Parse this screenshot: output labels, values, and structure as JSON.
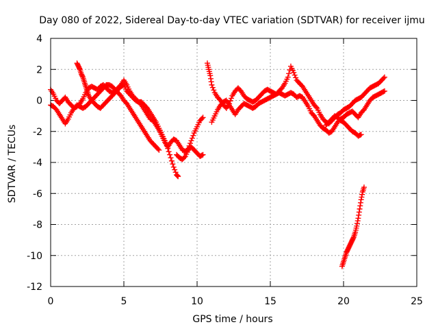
{
  "chart_data": {
    "type": "scatter",
    "title": "Day 080 of 2022, Sidereal Day-to-day VTEC variation (SDTVAR) for receiver ijmu",
    "xlabel": "GPS time / hours",
    "ylabel": "SDTVAR / TECUs",
    "xlim": [
      0,
      25
    ],
    "ylim": [
      -12,
      4
    ],
    "xticks": [
      0,
      5,
      10,
      15,
      20,
      25
    ],
    "yticks": [
      4,
      2,
      0,
      -2,
      -4,
      -6,
      -8,
      -10,
      -12
    ],
    "grid": true,
    "legend": "none",
    "marker": "plus",
    "color": "#ff0000",
    "series": [
      {
        "points": [
          [
            0,
            0.7
          ],
          [
            0.2,
            0.4
          ],
          [
            0.4,
            0
          ],
          [
            0.6,
            -0.2
          ],
          [
            0.8,
            0
          ],
          [
            1,
            0.2
          ],
          [
            1.2,
            -0.1
          ],
          [
            1.4,
            -0.3
          ],
          [
            1.6,
            -0.5
          ],
          [
            1.8,
            -0.4
          ],
          [
            2,
            -0.2
          ],
          [
            2.2,
            0.1
          ],
          [
            2.4,
            0.5
          ],
          [
            2.6,
            0.8
          ],
          [
            2.8,
            0.9
          ],
          [
            3,
            0.8
          ],
          [
            3.2,
            0.7
          ],
          [
            3.4,
            0.9
          ],
          [
            3.6,
            1
          ],
          [
            3.8,
            0.8
          ],
          [
            4,
            0.6
          ],
          [
            4.2,
            0.5
          ],
          [
            4.4,
            0.6
          ],
          [
            4.6,
            0.8
          ],
          [
            4.8,
            1
          ],
          [
            5,
            1.3
          ],
          [
            5.2,
            1
          ],
          [
            5.4,
            0.6
          ],
          [
            5.6,
            0.3
          ],
          [
            5.8,
            0.1
          ],
          [
            6,
            -0.1
          ],
          [
            6.2,
            -0.3
          ],
          [
            6.4,
            -0.6
          ],
          [
            6.6,
            -0.9
          ],
          [
            6.8,
            -1.2
          ],
          [
            7,
            -1.3
          ],
          [
            7.2,
            -1.6
          ],
          [
            7.4,
            -1.9
          ],
          [
            7.6,
            -2.3
          ],
          [
            7.8,
            -2.7
          ],
          [
            8,
            -3
          ],
          [
            8.2,
            -2.7
          ],
          [
            8.4,
            -2.5
          ],
          [
            8.6,
            -2.6
          ],
          [
            8.8,
            -2.9
          ],
          [
            9,
            -3.2
          ],
          [
            9.2,
            -3.3
          ],
          [
            9.4,
            -3.1
          ],
          [
            9.6,
            -2.6
          ],
          [
            9.8,
            -2.1
          ],
          [
            10,
            -1.7
          ],
          [
            10.2,
            -1.3
          ],
          [
            10.4,
            -1.1
          ]
        ]
      },
      {
        "points": [
          [
            0,
            -0.3
          ],
          [
            0.2,
            -0.4
          ],
          [
            0.4,
            -0.6
          ],
          [
            0.6,
            -0.9
          ],
          [
            0.8,
            -1.2
          ],
          [
            1,
            -1.5
          ],
          [
            1.2,
            -1.2
          ],
          [
            1.4,
            -0.8
          ],
          [
            1.6,
            -0.5
          ],
          [
            1.8,
            -0.3
          ],
          [
            2,
            -0.4
          ],
          [
            2.2,
            -0.5
          ],
          [
            2.4,
            -0.4
          ],
          [
            2.6,
            -0.2
          ],
          [
            2.8,
            0
          ],
          [
            3,
            0.2
          ],
          [
            3.2,
            0.4
          ],
          [
            3.4,
            0.6
          ],
          [
            3.6,
            0.8
          ],
          [
            3.8,
            1
          ],
          [
            4,
            1
          ],
          [
            4.2,
            0.9
          ],
          [
            4.4,
            0.7
          ],
          [
            4.6,
            0.5
          ],
          [
            4.8,
            0.3
          ],
          [
            5,
            0
          ],
          [
            5.2,
            -0.2
          ],
          [
            5.4,
            -0.5
          ],
          [
            5.6,
            -0.8
          ],
          [
            5.8,
            -1.1
          ],
          [
            6,
            -1.4
          ],
          [
            6.2,
            -1.7
          ],
          [
            6.4,
            -2
          ],
          [
            6.6,
            -2.3
          ],
          [
            6.8,
            -2.6
          ],
          [
            7,
            -2.8
          ],
          [
            7.2,
            -3
          ],
          [
            7.4,
            -3.2
          ]
        ]
      },
      {
        "points": [
          [
            1.8,
            2.4
          ],
          [
            1.9,
            2.2
          ],
          [
            2,
            2
          ],
          [
            2.1,
            1.7
          ],
          [
            2.2,
            1.5
          ],
          [
            2.3,
            1.2
          ],
          [
            2.4,
            0.9
          ],
          [
            2.5,
            0.6
          ],
          [
            2.6,
            0.3
          ],
          [
            2.8,
            0
          ],
          [
            3,
            -0.2
          ],
          [
            3.2,
            -0.4
          ],
          [
            3.4,
            -0.5
          ],
          [
            3.6,
            -0.3
          ],
          [
            3.8,
            -0.1
          ],
          [
            4,
            0.1
          ],
          [
            4.2,
            0.3
          ],
          [
            4.4,
            0.5
          ],
          [
            4.6,
            0.7
          ],
          [
            4.8,
            0.9
          ],
          [
            5,
            1
          ],
          [
            5.2,
            0.6
          ],
          [
            5.4,
            0.4
          ],
          [
            5.6,
            0.2
          ],
          [
            5.8,
            0
          ],
          [
            6,
            -0.1
          ],
          [
            6.2,
            -0.1
          ],
          [
            6.4,
            -0.3
          ],
          [
            6.6,
            -0.5
          ],
          [
            6.8,
            -0.8
          ],
          [
            7,
            -1.1
          ],
          [
            7.2,
            -1.4
          ],
          [
            7.4,
            -1.8
          ],
          [
            7.6,
            -2.2
          ],
          [
            7.8,
            -2.6
          ],
          [
            8,
            -3.1
          ],
          [
            8.2,
            -3.7
          ],
          [
            8.4,
            -4.3
          ],
          [
            8.6,
            -4.8
          ],
          [
            8.7,
            -4.9
          ]
        ]
      },
      {
        "points": [
          [
            8.6,
            -3.5
          ],
          [
            8.8,
            -3.7
          ],
          [
            9,
            -3.8
          ],
          [
            9.2,
            -3.6
          ],
          [
            9.4,
            -3.2
          ],
          [
            9.6,
            -3
          ],
          [
            9.8,
            -3.2
          ],
          [
            10,
            -3.4
          ],
          [
            10.2,
            -3.6
          ],
          [
            10.4,
            -3.5
          ]
        ]
      },
      {
        "points": [
          [
            10.7,
            2.4
          ],
          [
            10.8,
            2
          ],
          [
            10.9,
            1.6
          ],
          [
            11,
            1
          ],
          [
            11.2,
            0.5
          ],
          [
            11.4,
            0.2
          ],
          [
            11.6,
            0
          ],
          [
            11.8,
            -0.3
          ],
          [
            12,
            -0.5
          ],
          [
            12.2,
            -0.2
          ],
          [
            12.4,
            0.3
          ],
          [
            12.6,
            0.6
          ],
          [
            12.8,
            0.8
          ],
          [
            13,
            0.6
          ],
          [
            13.2,
            0.3
          ],
          [
            13.4,
            0.1
          ],
          [
            13.6,
            0
          ],
          [
            13.8,
            -0.1
          ],
          [
            14,
            0
          ],
          [
            14.2,
            0.2
          ],
          [
            14.4,
            0.4
          ],
          [
            14.6,
            0.6
          ],
          [
            14.8,
            0.7
          ],
          [
            15,
            0.6
          ],
          [
            15.2,
            0.5
          ],
          [
            15.4,
            0.4
          ],
          [
            15.6,
            0.6
          ],
          [
            15.8,
            0.8
          ],
          [
            16,
            1.1
          ],
          [
            16.2,
            1.5
          ],
          [
            16.4,
            2.2
          ],
          [
            16.6,
            1.8
          ],
          [
            16.8,
            1.3
          ],
          [
            17,
            1.1
          ],
          [
            17.2,
            0.9
          ],
          [
            17.4,
            0.6
          ],
          [
            17.6,
            0.3
          ],
          [
            17.8,
            0
          ],
          [
            18,
            -0.3
          ],
          [
            18.2,
            -0.5
          ],
          [
            18.4,
            -0.9
          ],
          [
            18.6,
            -1.2
          ],
          [
            18.8,
            -1.4
          ],
          [
            19,
            -1.5
          ],
          [
            19.2,
            -1.3
          ],
          [
            19.4,
            -1.1
          ],
          [
            19.6,
            -0.9
          ],
          [
            19.8,
            -0.8
          ],
          [
            20,
            -0.6
          ],
          [
            20.2,
            -0.5
          ],
          [
            20.4,
            -0.4
          ],
          [
            20.6,
            -0.2
          ],
          [
            20.8,
            0
          ],
          [
            21,
            0.1
          ],
          [
            21.2,
            0.2
          ],
          [
            21.4,
            0.4
          ],
          [
            21.6,
            0.6
          ],
          [
            21.8,
            0.8
          ],
          [
            22,
            0.9
          ],
          [
            22.2,
            1
          ],
          [
            22.4,
            1.1
          ],
          [
            22.6,
            1.3
          ],
          [
            22.8,
            1.5
          ]
        ]
      },
      {
        "points": [
          [
            11,
            -1.4
          ],
          [
            11.2,
            -1
          ],
          [
            11.4,
            -0.6
          ],
          [
            11.6,
            -0.3
          ],
          [
            11.8,
            -0.1
          ],
          [
            12,
            0
          ],
          [
            12.2,
            -0.3
          ],
          [
            12.4,
            -0.6
          ],
          [
            12.6,
            -0.9
          ],
          [
            12.8,
            -0.6
          ],
          [
            13,
            -0.4
          ],
          [
            13.2,
            -0.2
          ],
          [
            13.4,
            -0.3
          ],
          [
            13.6,
            -0.4
          ],
          [
            13.8,
            -0.5
          ],
          [
            14,
            -0.4
          ],
          [
            14.2,
            -0.2
          ],
          [
            14.4,
            -0.1
          ],
          [
            14.6,
            0
          ],
          [
            14.8,
            0.1
          ],
          [
            15,
            0.2
          ],
          [
            15.2,
            0.3
          ],
          [
            15.4,
            0.4
          ],
          [
            15.6,
            0.5
          ],
          [
            15.8,
            0.4
          ],
          [
            16,
            0.3
          ],
          [
            16.2,
            0.4
          ],
          [
            16.4,
            0.5
          ],
          [
            16.6,
            0.4
          ],
          [
            16.8,
            0.2
          ],
          [
            17,
            0.3
          ],
          [
            17.2,
            0.2
          ],
          [
            17.4,
            -0.1
          ],
          [
            17.6,
            -0.4
          ],
          [
            17.8,
            -0.8
          ],
          [
            18,
            -1
          ],
          [
            18.2,
            -1.3
          ],
          [
            18.4,
            -1.6
          ],
          [
            18.6,
            -1.8
          ],
          [
            18.8,
            -1.9
          ],
          [
            19,
            -2.1
          ],
          [
            19.2,
            -2
          ],
          [
            19.4,
            -1.7
          ],
          [
            19.6,
            -1.4
          ],
          [
            19.8,
            -1.2
          ],
          [
            20,
            -1.1
          ],
          [
            20.2,
            -0.9
          ],
          [
            20.4,
            -0.8
          ],
          [
            20.6,
            -0.7
          ],
          [
            20.8,
            -0.9
          ],
          [
            21,
            -1.1
          ],
          [
            21.2,
            -0.8
          ],
          [
            21.4,
            -0.6
          ],
          [
            21.6,
            -0.3
          ],
          [
            21.8,
            0
          ],
          [
            22,
            0.2
          ],
          [
            22.2,
            0.3
          ],
          [
            22.4,
            0.4
          ],
          [
            22.6,
            0.5
          ],
          [
            22.8,
            0.6
          ]
        ]
      },
      {
        "points": [
          [
            18.8,
            -1.6
          ],
          [
            19,
            -1.4
          ],
          [
            19.2,
            -1.2
          ],
          [
            19.4,
            -1
          ],
          [
            19.6,
            -1.1
          ],
          [
            19.8,
            -1.3
          ],
          [
            20,
            -1.4
          ],
          [
            20.2,
            -1.6
          ],
          [
            20.4,
            -1.8
          ],
          [
            20.6,
            -2
          ],
          [
            20.8,
            -2.1
          ],
          [
            21,
            -2.3
          ],
          [
            21.2,
            -2.2
          ]
        ]
      },
      {
        "points": [
          [
            19.9,
            -10.7
          ],
          [
            20,
            -10.4
          ],
          [
            20.1,
            -10.1
          ],
          [
            20.2,
            -9.8
          ],
          [
            20.3,
            -9.6
          ],
          [
            20.4,
            -9.4
          ],
          [
            20.5,
            -9.2
          ],
          [
            20.6,
            -9
          ],
          [
            20.7,
            -8.8
          ],
          [
            20.8,
            -8.5
          ],
          [
            20.9,
            -8.1
          ],
          [
            21,
            -7.6
          ],
          [
            21.1,
            -7
          ],
          [
            21.2,
            -6.4
          ],
          [
            21.3,
            -5.9
          ],
          [
            21.4,
            -5.6
          ]
        ]
      }
    ]
  }
}
